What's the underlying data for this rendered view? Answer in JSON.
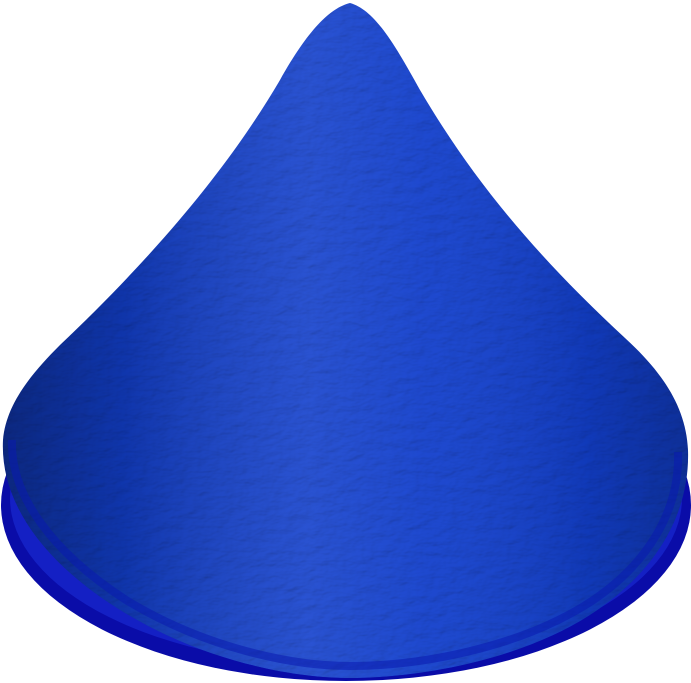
{
  "figure": {
    "object": "cone-surface",
    "colormap": [
      "#0000c8",
      "#1e7cf0",
      "#00ecf4",
      "#00d890",
      "#7ae800",
      "#f0f000",
      "#ffa000",
      "#ff2a00"
    ],
    "background": "#ffffff"
  }
}
